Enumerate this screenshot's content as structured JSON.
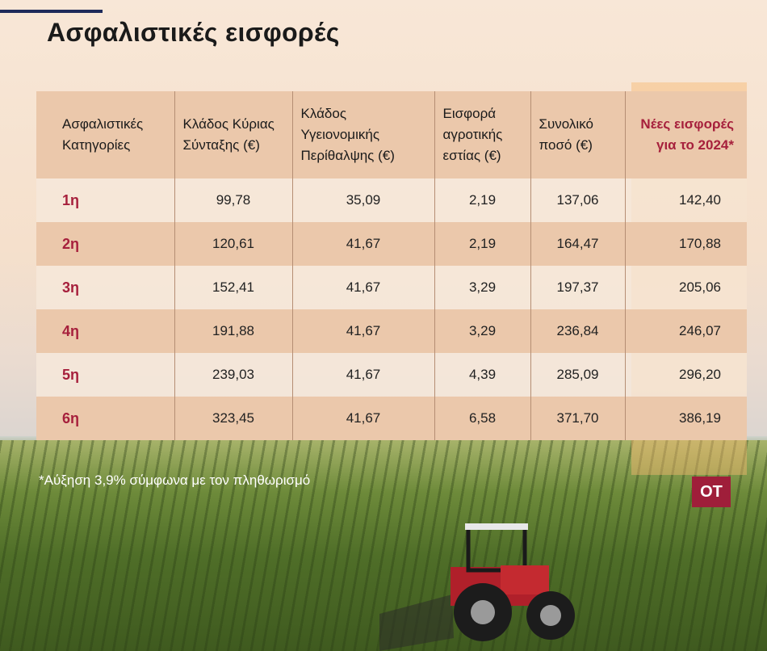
{
  "title": "Ασφαλιστικές εισφορές",
  "headers": {
    "categories": "Ασφαλιστικές Κατηγορίες",
    "main_pension": "Κλάδος Κύριας Σύνταξης (€)",
    "health_care": "Κλάδος Υγειονομικής Περίθαλψης (€)",
    "agri_hearth": "Εισφορά αγροτικής εστίας (€)",
    "total": "Συνολικό ποσό (€)",
    "new_2024": "Νέες εισφορές για το 2024*"
  },
  "rows": [
    {
      "category": "1η",
      "main_pension": "99,78",
      "health_care": "35,09",
      "agri_hearth": "2,19",
      "total": "137,06",
      "new_2024": "142,40"
    },
    {
      "category": "2η",
      "main_pension": "120,61",
      "health_care": "41,67",
      "agri_hearth": "2,19",
      "total": "164,47",
      "new_2024": "170,88"
    },
    {
      "category": "3η",
      "main_pension": "152,41",
      "health_care": "41,67",
      "agri_hearth": "3,29",
      "total": "197,37",
      "new_2024": "205,06"
    },
    {
      "category": "4η",
      "main_pension": "191,88",
      "health_care": "41,67",
      "agri_hearth": "3,29",
      "total": "236,84",
      "new_2024": "246,07"
    },
    {
      "category": "5η",
      "main_pension": "239,03",
      "health_care": "41,67",
      "agri_hearth": "4,39",
      "total": "285,09",
      "new_2024": "296,20"
    },
    {
      "category": "6η",
      "main_pension": "323,45",
      "health_care": "41,67",
      "agri_hearth": "6,58",
      "total": "371,70",
      "new_2024": "386,19"
    }
  ],
  "footnote": "*Αύξηση 3,9% σύμφωνα με τον πληθωρισμό",
  "logo": "OT",
  "colors": {
    "accent": "#a6203c",
    "header_bg": "#ebc8ab",
    "highlight": "#f6b86e",
    "logo_bg": "#9f1e3a",
    "topbar": "#1e2a5a"
  }
}
